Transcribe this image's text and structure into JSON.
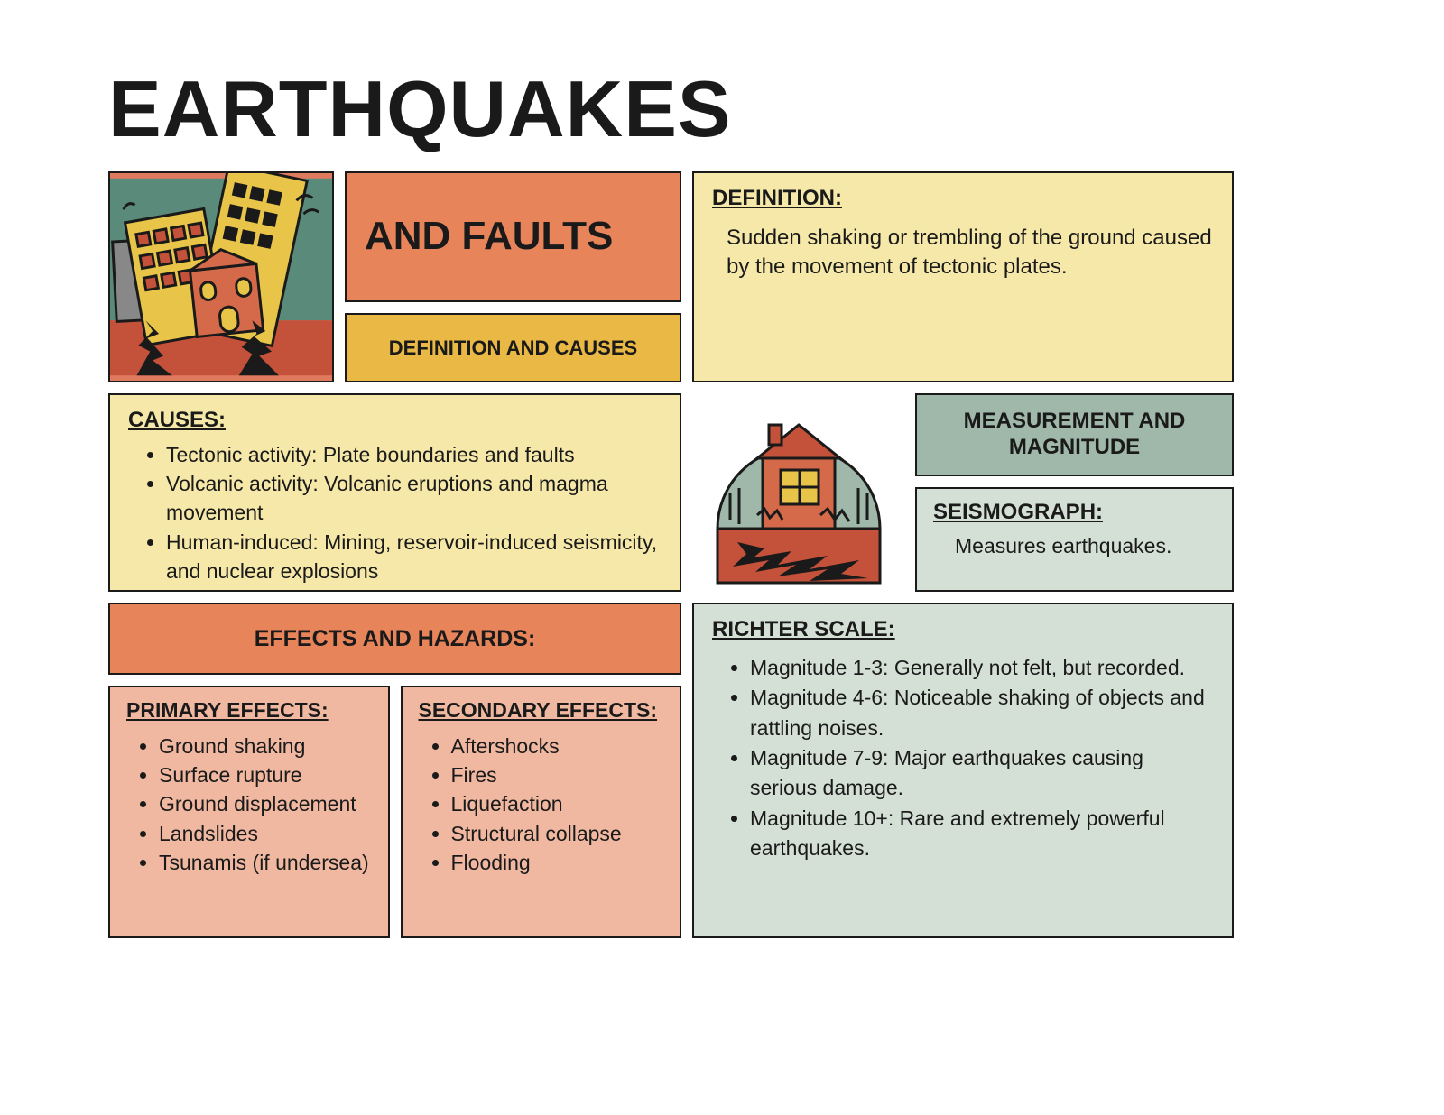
{
  "title": "EARTHQUAKES",
  "subtitle": "AND FAULTS",
  "subheading": "DEFINITION AND CAUSES",
  "definition": {
    "label": "DEFINITION:",
    "text": "Sudden shaking or trembling of the ground caused by the movement of tectonic plates."
  },
  "causes": {
    "label": "CAUSES:",
    "items": [
      "Tectonic activity: Plate boundaries and faults",
      "Volcanic activity: Volcanic eruptions and magma movement",
      "Human-induced: Mining, reservoir-induced seismicity, and nuclear explosions"
    ]
  },
  "measurement": {
    "header": "MEASUREMENT AND MAGNITUDE",
    "seismograph_label": "SEISMOGRAPH:",
    "seismograph_text": "Measures earthquakes."
  },
  "effects_header": "EFFECTS AND HAZARDS:",
  "primary": {
    "label": "PRIMARY EFFECTS:",
    "items": [
      "Ground shaking",
      "Surface rupture",
      "Ground displacement",
      "Landslides",
      "Tsunamis (if undersea)"
    ]
  },
  "secondary": {
    "label": "SECONDARY EFFECTS:",
    "items": [
      "Aftershocks",
      "Fires",
      "Liquefaction",
      "Structural collapse",
      "Flooding"
    ]
  },
  "richter": {
    "label": "RICHTER SCALE:",
    "items": [
      "Magnitude 1-3: Generally not felt, but recorded.",
      "Magnitude 4-6: Noticeable shaking of objects and rattling noises.",
      "Magnitude 7-9: Major earthquakes causing serious damage.",
      "Magnitude 10+: Rare and extremely powerful earthquakes."
    ]
  },
  "colors": {
    "orange": "#e8845a",
    "yellow": "#eab945",
    "cream": "#f5e8a8",
    "teal": "#9fb8a9",
    "mint": "#d4e0d6",
    "peach": "#f0b8a0",
    "border": "#1a1a1a"
  },
  "illustrations": {
    "city": "tilting-buildings-earthquake-icon",
    "house": "house-crack-earthquake-icon"
  }
}
